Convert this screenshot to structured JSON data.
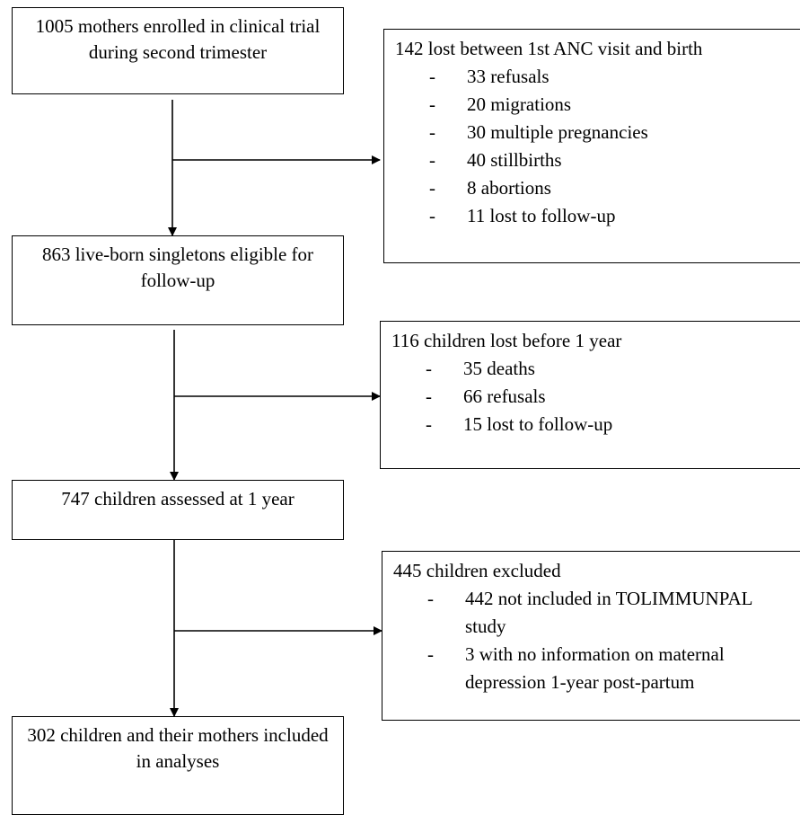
{
  "main_boxes": [
    {
      "text": "1005 mothers enrolled in clinical trial during second trimester"
    },
    {
      "text": "863 live-born singletons eligible for follow-up"
    },
    {
      "text": "747 children assessed at 1 year"
    },
    {
      "text": "302 children and their mothers included in analyses"
    }
  ],
  "side_boxes": [
    {
      "title": "142 lost between 1st ANC visit and birth",
      "items": [
        "33 refusals",
        "20 migrations",
        "30 multiple pregnancies",
        "40 stillbirths",
        "8 abortions",
        "11 lost to follow-up"
      ]
    },
    {
      "title": "116 children lost before 1 year",
      "items": [
        "35 deaths",
        "66 refusals",
        "15 lost to follow-up"
      ]
    },
    {
      "title": "445 children excluded",
      "items": [
        "442 not included in TOLIMMUNPAL study",
        "3 with no information on maternal depression 1-year post-partum"
      ]
    }
  ],
  "bullet_marker": "-"
}
